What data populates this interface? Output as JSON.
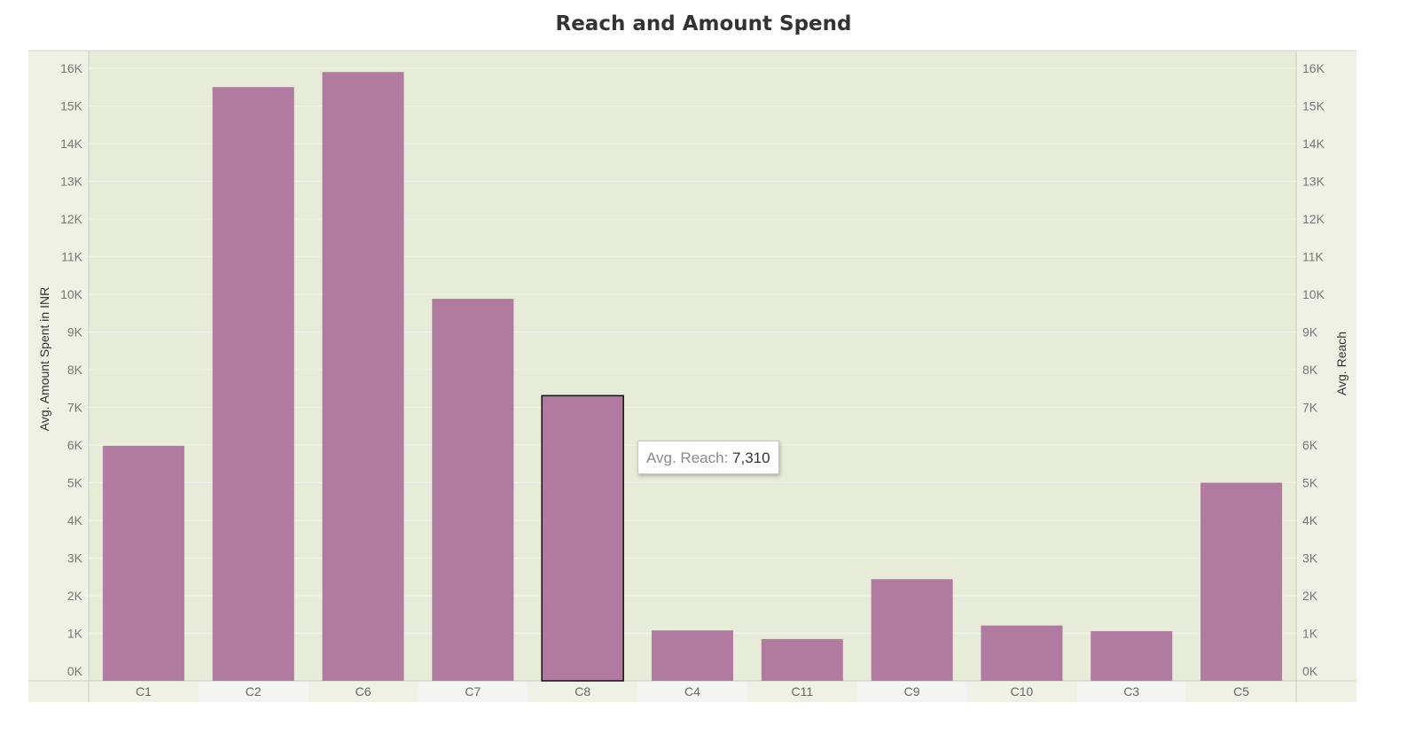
{
  "chart_data": {
    "type": "bar",
    "title": "Reach and Amount Spend",
    "categories": [
      "C1",
      "C2",
      "C6",
      "C7",
      "C8",
      "C4",
      "C11",
      "C9",
      "C10",
      "C3",
      "C5"
    ],
    "values": [
      5980,
      15500,
      15900,
      9880,
      7310,
      1080,
      850,
      2440,
      1210,
      1060,
      5000
    ],
    "highlighted_category": "C8",
    "y_left_label": "Avg. Amount Spent in INR",
    "y_right_label": "Avg. Reach",
    "ylim": [
      0,
      16000
    ],
    "y_ticks": [
      "0K",
      "1K",
      "2K",
      "3K",
      "4K",
      "5K",
      "6K",
      "7K",
      "8K",
      "9K",
      "10K",
      "11K",
      "12K",
      "13K",
      "14K",
      "15K",
      "16K"
    ],
    "grid": true,
    "bar_color": "#b07aa1",
    "plot_background": "#e7ecd9",
    "tooltip": {
      "label": "Avg. Reach:",
      "value": "7,310"
    }
  }
}
